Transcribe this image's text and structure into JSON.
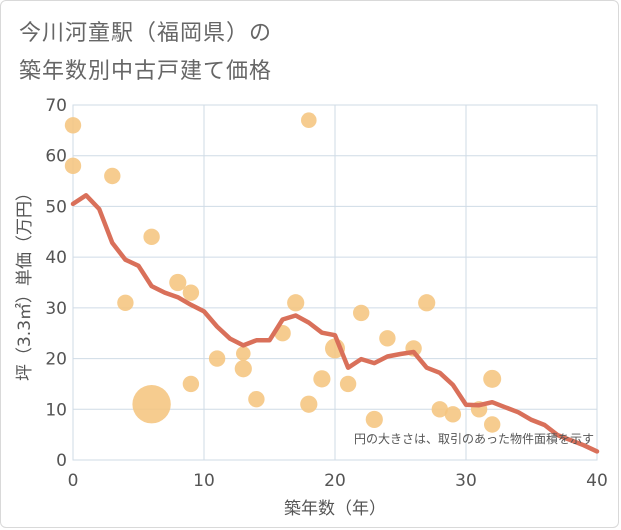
{
  "chart_data": {
    "type": "scatter",
    "title": [
      "今川河童駅（福岡県）の",
      "築年数別中古戸建て価格"
    ],
    "xlabel": "築年数（年）",
    "ylabel": "坪（3.3㎡）単価（万円）",
    "xlim": [
      0,
      40
    ],
    "ylim": [
      0,
      70
    ],
    "xticks": [
      0,
      10,
      20,
      30,
      40
    ],
    "yticks": [
      0,
      10,
      20,
      30,
      40,
      50,
      60,
      70
    ],
    "grid": true,
    "note": "円の大きさは、取引のあった物件面積を示す",
    "colors": {
      "bubble": "#f5c57f",
      "line": "#d9705a",
      "grid": "#cfdbe6"
    },
    "bubbles": [
      {
        "x": 0,
        "y": 66,
        "size": 1
      },
      {
        "x": 0,
        "y": 58,
        "size": 1
      },
      {
        "x": 3,
        "y": 56,
        "size": 1
      },
      {
        "x": 4,
        "y": 31,
        "size": 1
      },
      {
        "x": 6,
        "y": 44,
        "size": 1
      },
      {
        "x": 6,
        "y": 11,
        "size": 5.5
      },
      {
        "x": 8,
        "y": 35,
        "size": 1.1
      },
      {
        "x": 9,
        "y": 33,
        "size": 1
      },
      {
        "x": 9,
        "y": 15,
        "size": 1
      },
      {
        "x": 11,
        "y": 20,
        "size": 1
      },
      {
        "x": 13,
        "y": 21,
        "size": 0.8
      },
      {
        "x": 13,
        "y": 18,
        "size": 1.1
      },
      {
        "x": 14,
        "y": 12,
        "size": 1
      },
      {
        "x": 16,
        "y": 25,
        "size": 1
      },
      {
        "x": 17,
        "y": 31,
        "size": 1.1
      },
      {
        "x": 18,
        "y": 67,
        "size": 0.9
      },
      {
        "x": 18,
        "y": 11,
        "size": 1.1
      },
      {
        "x": 19,
        "y": 16,
        "size": 1.1
      },
      {
        "x": 20,
        "y": 22,
        "size": 1.5
      },
      {
        "x": 21,
        "y": 15,
        "size": 1
      },
      {
        "x": 22,
        "y": 29,
        "size": 1
      },
      {
        "x": 23,
        "y": 8,
        "size": 1.1
      },
      {
        "x": 24,
        "y": 24,
        "size": 1
      },
      {
        "x": 26,
        "y": 22,
        "size": 1
      },
      {
        "x": 27,
        "y": 31,
        "size": 1.1
      },
      {
        "x": 28,
        "y": 10,
        "size": 1
      },
      {
        "x": 29,
        "y": 9,
        "size": 1
      },
      {
        "x": 31,
        "y": 10,
        "size": 1
      },
      {
        "x": 32,
        "y": 16,
        "size": 1.2
      },
      {
        "x": 32,
        "y": 7,
        "size": 1
      }
    ],
    "trend": {
      "x": [
        0,
        1,
        2,
        3,
        4,
        5,
        6,
        7,
        8,
        9,
        10,
        11,
        12,
        13,
        14,
        15,
        16,
        17,
        18,
        19,
        20,
        21,
        22,
        23,
        24,
        25,
        26,
        27,
        28,
        29,
        30,
        31,
        32,
        33,
        34,
        35,
        36,
        37,
        38,
        39,
        40
      ],
      "y": [
        50.5,
        52.2,
        49.5,
        42.8,
        39.5,
        38.3,
        34.3,
        33.0,
        32.1,
        30.6,
        29.3,
        26.3,
        23.9,
        22.6,
        23.6,
        23.6,
        27.7,
        28.5,
        27.1,
        25.1,
        24.6,
        18.2,
        19.9,
        19.1,
        20.4,
        20.9,
        21.3,
        18.2,
        17.2,
        14.8,
        10.9,
        10.8,
        11.4,
        10.4,
        9.4,
        7.9,
        6.9,
        4.9,
        3.9,
        2.9,
        1.7
      ]
    }
  }
}
